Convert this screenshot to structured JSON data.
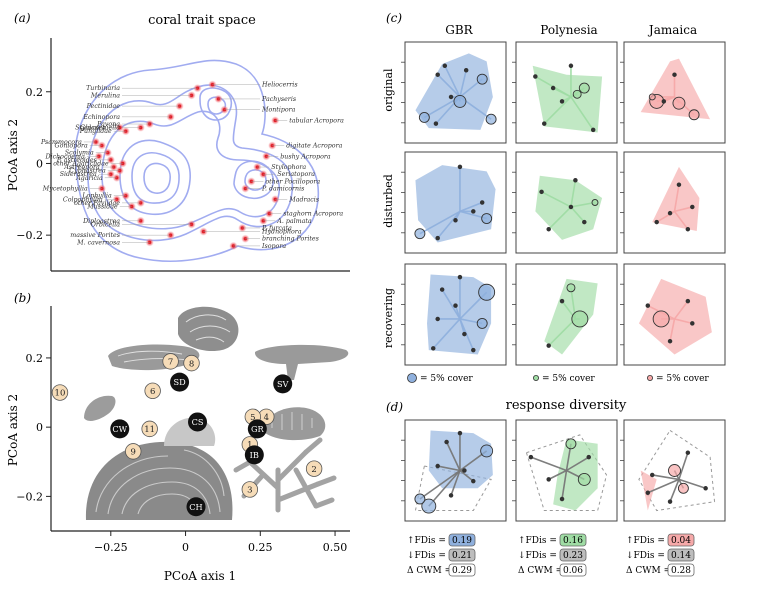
{
  "chart_data": [
    {
      "panel": "(a)",
      "type": "scatter",
      "title": "coral trait space",
      "xlabel": "",
      "ylabel": "PCoA axis 2",
      "ylim": [
        -0.3,
        0.35
      ],
      "xlim": [
        -0.45,
        0.55
      ],
      "yticks": [
        "0.2",
        "0",
        "−0.2"
      ],
      "ytick_values": [
        0.2,
        0,
        -0.2
      ],
      "contours": true,
      "species": [
        {
          "name": "Turbinaria",
          "x": 0.04,
          "y": 0.21
        },
        {
          "name": "Pectinidae",
          "x": -0.02,
          "y": 0.16
        },
        {
          "name": "Heliocerris",
          "x": 0.09,
          "y": 0.22
        },
        {
          "name": "Merulina",
          "x": 0.02,
          "y": 0.19
        },
        {
          "name": "Pachyseris",
          "x": 0.11,
          "y": 0.18
        },
        {
          "name": "Echinopora",
          "x": -0.05,
          "y": 0.13
        },
        {
          "name": "Montipora",
          "x": 0.13,
          "y": 0.15
        },
        {
          "name": "Pavona",
          "x": -0.12,
          "y": 0.11
        },
        {
          "name": "Stylocoeniella",
          "x": -0.15,
          "y": 0.1
        },
        {
          "name": "Fungiidae",
          "x": -0.2,
          "y": 0.09
        },
        {
          "name": "Galaxea",
          "x": -0.22,
          "y": 0.1
        },
        {
          "name": "tabular Acropora",
          "x": 0.3,
          "y": 0.12
        },
        {
          "name": "Psammocora",
          "x": -0.3,
          "y": 0.06
        },
        {
          "name": "Goniopora",
          "x": -0.28,
          "y": 0.05
        },
        {
          "name": "Scolymia",
          "x": -0.26,
          "y": 0.03
        },
        {
          "name": "Dichocoenia",
          "x": -0.29,
          "y": 0.02
        },
        {
          "name": "P. astreoides",
          "x": -0.25,
          "y": 0.01
        },
        {
          "name": "other Agariciidae",
          "x": -0.21,
          "y": 0.0
        },
        {
          "name": "Astreopora",
          "x": -0.24,
          "y": -0.01
        },
        {
          "name": "Cyphastrea",
          "x": -0.22,
          "y": -0.02
        },
        {
          "name": "Siderastrea",
          "x": -0.25,
          "y": -0.03
        },
        {
          "name": "Agaricia",
          "x": -0.23,
          "y": -0.04
        },
        {
          "name": "digitate Acropora",
          "x": 0.29,
          "y": 0.05
        },
        {
          "name": "bushy Acropora",
          "x": 0.27,
          "y": 0.02
        },
        {
          "name": "Stylophora",
          "x": 0.24,
          "y": -0.01
        },
        {
          "name": "Seriatopora",
          "x": 0.26,
          "y": -0.03
        },
        {
          "name": "other Pocillopora",
          "x": 0.22,
          "y": -0.05
        },
        {
          "name": "P. damicornis",
          "x": 0.2,
          "y": -0.07
        },
        {
          "name": "Mycetophyllia",
          "x": -0.28,
          "y": -0.07
        },
        {
          "name": "Lophyllia",
          "x": -0.2,
          "y": -0.09
        },
        {
          "name": "Colpophyllia",
          "x": -0.23,
          "y": -0.1
        },
        {
          "name": "Mussidae",
          "x": -0.18,
          "y": -0.12
        },
        {
          "name": "other Faviidae",
          "x": -0.15,
          "y": -0.11
        },
        {
          "name": "Madracis",
          "x": 0.3,
          "y": -0.1
        },
        {
          "name": "staghorn Acropora",
          "x": 0.28,
          "y": -0.14
        },
        {
          "name": "A. palmata",
          "x": 0.26,
          "y": -0.16
        },
        {
          "name": "Diploastrea",
          "x": -0.15,
          "y": -0.16
        },
        {
          "name": "Orbicella",
          "x": 0.02,
          "y": -0.17
        },
        {
          "name": "Hydnophora",
          "x": 0.06,
          "y": -0.19
        },
        {
          "name": "P. furcata",
          "x": 0.19,
          "y": -0.18
        },
        {
          "name": "massive Porites",
          "x": -0.05,
          "y": -0.2
        },
        {
          "name": "branching Porites",
          "x": 0.2,
          "y": -0.21
        },
        {
          "name": "M. cavernosa",
          "x": -0.12,
          "y": -0.22
        },
        {
          "name": "Isopora",
          "x": 0.16,
          "y": -0.23
        }
      ]
    },
    {
      "panel": "(b)",
      "type": "scatter",
      "title": "",
      "xlabel": "PCoA axis 1",
      "ylabel": "PCoA axis 2",
      "xlim": [
        -0.45,
        0.55
      ],
      "ylim": [
        -0.3,
        0.35
      ],
      "xticks": [
        "−0.25",
        "0",
        "0.25",
        "0.50"
      ],
      "xtick_values": [
        -0.25,
        0,
        0.25,
        0.5
      ],
      "yticks": [
        "0.2",
        "0",
        "−0.2"
      ],
      "ytick_values": [
        0.2,
        0,
        -0.2
      ],
      "numbered_points": [
        {
          "label": "1",
          "x": 0.215,
          "y": -0.05
        },
        {
          "label": "2",
          "x": 0.43,
          "y": -0.12
        },
        {
          "label": "3",
          "x": 0.215,
          "y": -0.18
        },
        {
          "label": "4",
          "x": 0.27,
          "y": 0.03
        },
        {
          "label": "5",
          "x": 0.225,
          "y": 0.03
        },
        {
          "label": "6",
          "x": -0.11,
          "y": 0.105
        },
        {
          "label": "7",
          "x": -0.05,
          "y": 0.19
        },
        {
          "label": "8",
          "x": 0.02,
          "y": 0.185
        },
        {
          "label": "9",
          "x": -0.175,
          "y": -0.07
        },
        {
          "label": "10",
          "x": -0.42,
          "y": 0.1
        },
        {
          "label": "11",
          "x": -0.12,
          "y": -0.005
        }
      ],
      "group_points": [
        {
          "label": "SD",
          "x": -0.02,
          "y": 0.13
        },
        {
          "label": "SV",
          "x": 0.325,
          "y": 0.125
        },
        {
          "label": "CS",
          "x": 0.04,
          "y": 0.015
        },
        {
          "label": "CW",
          "x": -0.22,
          "y": -0.005
        },
        {
          "label": "GR",
          "x": 0.24,
          "y": -0.005
        },
        {
          "label": "IB",
          "x": 0.23,
          "y": -0.08
        },
        {
          "label": "CH",
          "x": 0.035,
          "y": -0.23
        }
      ]
    },
    {
      "panel": "(c)",
      "type": "scatter",
      "columns": [
        "GBR",
        "Polynesia",
        "Jamaica"
      ],
      "rows": [
        "original",
        "disturbed",
        "recovering"
      ],
      "colors": {
        "GBR": "#8fb0dd",
        "Polynesia": "#9fdca4",
        "Jamaica": "#f6a9a9"
      },
      "legend": [
        "= 5% cover",
        "= 5% cover",
        "= 5% cover"
      ]
    },
    {
      "panel": "(d)",
      "type": "scatter",
      "title": "response diversity",
      "metrics": [
        {
          "region": "GBR",
          "fdis_up": "0.19",
          "fdis_down": "0.21",
          "dcwm": "0.29"
        },
        {
          "region": "Polynesia",
          "fdis_up": "0.16",
          "fdis_down": "0.23",
          "dcwm": "0.06"
        },
        {
          "region": "Jamaica",
          "fdis_up": "0.04",
          "fdis_down": "0.14",
          "dcwm": "0.28"
        }
      ],
      "labels": {
        "fdis": "FDis =",
        "cwm": "Δ CWM ="
      }
    }
  ],
  "panel_letters": {
    "a": "(a)",
    "b": "(b)",
    "c": "(c)",
    "d": "(d)"
  }
}
